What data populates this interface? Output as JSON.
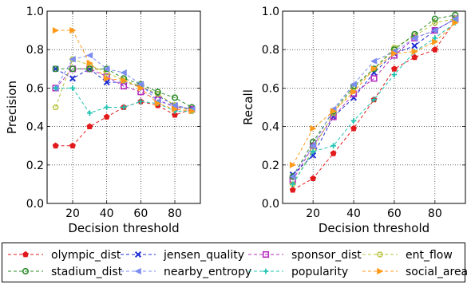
{
  "chart_data": [
    {
      "type": "line",
      "title": "",
      "xlabel": "Decision threshold",
      "ylabel": "Precision",
      "xlim": [
        5,
        95
      ],
      "ylim": [
        0.0,
        1.0
      ],
      "xticks": [
        20,
        40,
        60,
        80
      ],
      "yticks": [
        0.0,
        0.2,
        0.4,
        0.6,
        0.8,
        1.0
      ],
      "grid": true,
      "x": [
        10,
        20,
        30,
        40,
        50,
        60,
        70,
        80,
        90
      ],
      "series": [
        {
          "name": "olympic_dist",
          "values": [
            0.3,
            0.3,
            0.4,
            0.45,
            0.5,
            0.53,
            0.51,
            0.46,
            0.49
          ]
        },
        {
          "name": "jensen_quality",
          "values": [
            0.7,
            0.65,
            0.7,
            0.63,
            0.63,
            0.61,
            0.56,
            0.51,
            0.49
          ]
        },
        {
          "name": "sponsor_dist",
          "values": [
            0.6,
            0.7,
            0.7,
            0.66,
            0.61,
            0.58,
            0.54,
            0.5,
            0.49
          ]
        },
        {
          "name": "ent_flow",
          "values": [
            0.5,
            0.75,
            0.72,
            0.68,
            0.64,
            0.61,
            0.57,
            0.51,
            0.48
          ]
        },
        {
          "name": "stadium_dist",
          "values": [
            0.7,
            0.7,
            0.7,
            0.7,
            0.65,
            0.62,
            0.58,
            0.55,
            0.5
          ]
        },
        {
          "name": "nearby_entropy",
          "values": [
            0.6,
            0.75,
            0.77,
            0.7,
            0.68,
            0.62,
            0.53,
            0.51,
            0.49
          ]
        },
        {
          "name": "popularity",
          "values": [
            0.6,
            0.6,
            0.47,
            0.5,
            0.5,
            0.53,
            0.52,
            0.48,
            0.48
          ]
        },
        {
          "name": "social_area",
          "values": [
            0.9,
            0.9,
            0.73,
            0.65,
            0.64,
            0.6,
            0.52,
            0.49,
            0.48
          ]
        }
      ]
    },
    {
      "type": "line",
      "title": "",
      "xlabel": "Decision threshold",
      "ylabel": "Recall",
      "xlim": [
        5,
        95
      ],
      "ylim": [
        0.0,
        1.0
      ],
      "xticks": [
        20,
        40,
        60,
        80
      ],
      "yticks": [
        0.0,
        0.2,
        0.4,
        0.6,
        0.8,
        1.0
      ],
      "grid": true,
      "x": [
        10,
        20,
        30,
        40,
        50,
        60,
        70,
        80,
        90
      ],
      "series": [
        {
          "name": "olympic_dist",
          "values": [
            0.07,
            0.13,
            0.26,
            0.39,
            0.54,
            0.7,
            0.76,
            0.8,
            0.95
          ]
        },
        {
          "name": "jensen_quality",
          "values": [
            0.15,
            0.25,
            0.45,
            0.55,
            0.68,
            0.78,
            0.82,
            0.9,
            0.96
          ]
        },
        {
          "name": "sponsor_dist",
          "values": [
            0.12,
            0.3,
            0.45,
            0.57,
            0.65,
            0.77,
            0.86,
            0.9,
            0.96
          ]
        },
        {
          "name": "ent_flow",
          "values": [
            0.1,
            0.28,
            0.47,
            0.6,
            0.7,
            0.81,
            0.87,
            0.94,
            0.96
          ]
        },
        {
          "name": "stadium_dist",
          "values": [
            0.14,
            0.32,
            0.48,
            0.61,
            0.7,
            0.8,
            0.88,
            0.96,
            0.98
          ]
        },
        {
          "name": "nearby_entropy",
          "values": [
            0.14,
            0.3,
            0.49,
            0.62,
            0.74,
            0.79,
            0.86,
            0.9,
            0.96
          ]
        },
        {
          "name": "popularity",
          "values": [
            0.1,
            0.27,
            0.3,
            0.43,
            0.54,
            0.67,
            0.79,
            0.86,
            0.94
          ]
        },
        {
          "name": "social_area",
          "values": [
            0.2,
            0.39,
            0.48,
            0.58,
            0.7,
            0.78,
            0.79,
            0.84,
            0.94
          ]
        }
      ]
    }
  ],
  "legend": {
    "placement": "bottom",
    "columns": [
      [
        "olympic_dist",
        "stadium_dist"
      ],
      [
        "jensen_quality",
        "nearby_entropy"
      ],
      [
        "sponsor_dist",
        "popularity"
      ],
      [
        "ent_flow",
        "social_area"
      ]
    ]
  },
  "styles": {
    "olympic_dist": {
      "color": "#e31a1c",
      "marker": "pentagon",
      "filled": true
    },
    "jensen_quality": {
      "color": "#1f2fd6",
      "marker": "x",
      "filled": false
    },
    "sponsor_dist": {
      "color": "#b62fbf",
      "marker": "square",
      "filled": false
    },
    "ent_flow": {
      "color": "#b7c43a",
      "marker": "hexagon",
      "filled": false
    },
    "stadium_dist": {
      "color": "#2e8b2e",
      "marker": "circle",
      "filled": false
    },
    "nearby_entropy": {
      "color": "#7b8cf0",
      "marker": "triangle-left",
      "filled": true
    },
    "popularity": {
      "color": "#1ec4b0",
      "marker": "plus",
      "filled": false
    },
    "social_area": {
      "color": "#ff9a1a",
      "marker": "triangle-right",
      "filled": true
    }
  }
}
